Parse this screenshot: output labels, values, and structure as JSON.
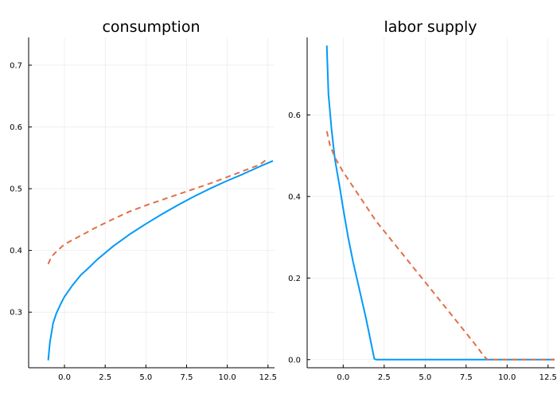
{
  "chart_data": [
    {
      "type": "line",
      "title": "consumption",
      "xlabel": "",
      "ylabel": "",
      "xlim": [
        -2.2,
        12.9
      ],
      "ylim": [
        0.21,
        0.745
      ],
      "xticks": [
        0.0,
        2.5,
        5.0,
        7.5,
        10.0,
        12.5
      ],
      "xtick_labels": [
        "0.0",
        "2.5",
        "5.0",
        "7.5",
        "10.0",
        "12.5"
      ],
      "yticks": [
        0.3,
        0.4,
        0.5,
        0.6,
        0.7
      ],
      "ytick_labels": [
        "0.3",
        "0.4",
        "0.5",
        "0.6",
        "0.7"
      ],
      "grid": true,
      "legend": "none",
      "series": [
        {
          "color": "#009af9",
          "dash": "solid",
          "x": [
            -1.0,
            -0.9,
            -0.7,
            -0.5,
            -0.2,
            0.0,
            0.5,
            1.0,
            1.5,
            2.0,
            3.0,
            4.0,
            5.0,
            6.0,
            7.0,
            8.0,
            9.0,
            10.0,
            11.0,
            12.0,
            12.8
          ],
          "y": [
            0.222,
            0.25,
            0.282,
            0.298,
            0.315,
            0.325,
            0.344,
            0.36,
            0.372,
            0.385,
            0.407,
            0.426,
            0.443,
            0.459,
            0.474,
            0.488,
            0.501,
            0.513,
            0.524,
            0.536,
            0.545
          ]
        },
        {
          "color": "#e26f46",
          "dash": "dashed",
          "x": [
            -1.0,
            -0.8,
            -0.5,
            0.0,
            1.0,
            2.0,
            3.0,
            4.0,
            5.0,
            6.0,
            7.0,
            8.0,
            9.0,
            10.0,
            11.0,
            12.0,
            12.5
          ],
          "y": [
            0.378,
            0.39,
            0.398,
            0.41,
            0.424,
            0.438,
            0.451,
            0.463,
            0.473,
            0.482,
            0.491,
            0.5,
            0.509,
            0.519,
            0.529,
            0.539,
            0.549
          ]
        }
      ]
    },
    {
      "type": "line",
      "title": "labor supply",
      "xlabel": "",
      "ylabel": "",
      "xlim": [
        -2.2,
        12.9
      ],
      "ylim": [
        -0.02,
        0.79
      ],
      "xticks": [
        0.0,
        2.5,
        5.0,
        7.5,
        10.0,
        12.5
      ],
      "xtick_labels": [
        "0.0",
        "2.5",
        "5.0",
        "7.5",
        "10.0",
        "12.5"
      ],
      "yticks": [
        0.0,
        0.2,
        0.4,
        0.6
      ],
      "ytick_labels": [
        "0.0",
        "0.2",
        "0.4",
        "0.6"
      ],
      "grid": true,
      "legend": "none",
      "series": [
        {
          "color": "#009af9",
          "dash": "solid",
          "x": [
            -1.0,
            -0.9,
            -0.7,
            -0.5,
            -0.2,
            0.0,
            0.3,
            0.6,
            1.0,
            1.4,
            1.9,
            2.0,
            12.9
          ],
          "y": [
            0.77,
            0.65,
            0.56,
            0.49,
            0.42,
            0.37,
            0.3,
            0.24,
            0.17,
            0.1,
            0.002,
            0.0,
            0.0
          ]
        },
        {
          "color": "#e26f46",
          "dash": "dashed",
          "x": [
            -1.0,
            -0.8,
            -0.5,
            0.0,
            1.0,
            2.0,
            3.0,
            4.0,
            5.0,
            6.0,
            7.0,
            8.0,
            8.6,
            8.8,
            12.9
          ],
          "y": [
            0.56,
            0.525,
            0.495,
            0.46,
            0.4,
            0.34,
            0.29,
            0.24,
            0.19,
            0.14,
            0.09,
            0.04,
            0.008,
            0.0,
            0.0
          ]
        }
      ]
    }
  ]
}
